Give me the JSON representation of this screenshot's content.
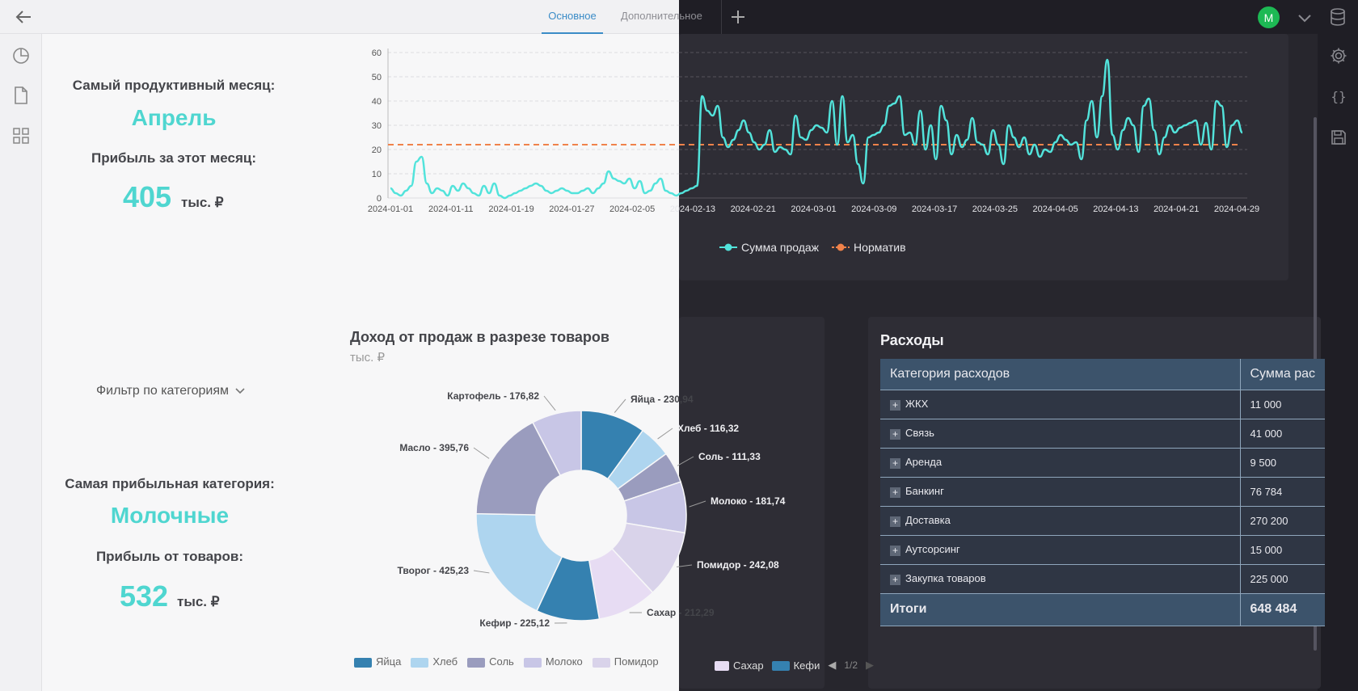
{
  "header": {
    "tabs": [
      {
        "label": "Основное",
        "active": true
      },
      {
        "label": "Дополнительное",
        "active": false
      }
    ],
    "avatar_letter": "М",
    "avatar_color": "#1db954"
  },
  "sidebar_icons": [
    "pie-chart-icon",
    "document-icon",
    "grid-icon"
  ],
  "right_rail_icons": [
    "gear-icon",
    "code-braces-icon",
    "save-icon"
  ],
  "kpi_month": {
    "title": "Самый продуктивный месяц:",
    "value": "Апрель",
    "profit_title": "Прибыль за этот месяц:",
    "profit_value": "405",
    "profit_unit": "тыс. ₽"
  },
  "filter": {
    "label": "Фильтр по категориям"
  },
  "kpi_category": {
    "title": "Самая прибыльная категория:",
    "value": "Молочные",
    "profit_title": "Прибыль от товаров:",
    "profit_value": "532",
    "profit_unit": "тыс. ₽"
  },
  "line_legend": {
    "series1": "Сумма продаж",
    "series2": "Норматив"
  },
  "pie_titles": {
    "title": "Доход от продаж в разрезе товаров",
    "subtitle": "тыс. ₽"
  },
  "pie_legend": {
    "items_light": [
      "Яйца",
      "Хлеб",
      "Соль",
      "Молоко",
      "Помидор"
    ],
    "items_dark": [
      "Сахар",
      "Кефи"
    ],
    "page": "1/2"
  },
  "expenses": {
    "title": "Расходы",
    "col1": "Категория расходов",
    "col2": "Сумма рас",
    "rows": [
      {
        "name": "ЖКХ",
        "value": "11 000"
      },
      {
        "name": "Связь",
        "value": "41 000"
      },
      {
        "name": "Аренда",
        "value": "9 500"
      },
      {
        "name": "Банкинг",
        "value": "76 784"
      },
      {
        "name": "Доставка",
        "value": "270 200"
      },
      {
        "name": "Аутсорсинг",
        "value": "15 000"
      },
      {
        "name": "Закупка товаров",
        "value": "225 000"
      }
    ],
    "total_label": "Итоги",
    "total_value": "648 484"
  },
  "colors": {
    "line": "#52e3db",
    "norm": "#f0824a",
    "accent": "#4fd6d0",
    "tab_active": "#3b8cc7"
  },
  "chart_data": [
    {
      "type": "line",
      "x_ticks": [
        "2024-01-01",
        "2024-01-11",
        "2024-01-19",
        "2024-01-27",
        "2024-02-05",
        "2024-02-13",
        "2024-02-21",
        "2024-03-01",
        "2024-03-09",
        "2024-03-17",
        "2024-03-25",
        "2024-04-05",
        "2024-04-13",
        "2024-04-21",
        "2024-04-29"
      ],
      "y_ticks": [
        0,
        10,
        20,
        30,
        40,
        50,
        60
      ],
      "ylim": [
        0,
        60
      ],
      "x_range": [
        "2024-01-01",
        "2024-04-30"
      ],
      "series": [
        {
          "name": "Сумма продаж",
          "values": [
            4,
            2,
            1,
            3,
            5,
            15,
            17,
            6,
            2,
            4,
            3,
            1,
            5,
            3,
            6,
            4,
            2,
            1,
            5,
            2,
            6,
            1,
            0,
            1,
            2,
            3,
            4,
            5,
            6,
            5,
            3,
            2,
            3,
            4,
            3,
            2,
            2,
            3,
            4,
            2,
            4,
            6,
            11,
            8,
            7,
            6,
            8,
            4,
            7,
            2,
            3,
            6,
            8,
            3,
            2,
            1,
            2,
            3,
            4,
            5,
            42,
            36,
            34,
            38,
            25,
            21,
            24,
            28,
            32,
            27,
            23,
            20,
            22,
            28,
            19,
            21,
            20,
            18,
            34,
            25,
            24,
            28,
            30,
            29,
            27,
            40,
            22,
            42,
            23,
            26,
            14,
            6,
            25,
            26,
            27,
            30,
            38,
            39,
            42,
            26,
            27,
            22,
            36,
            20,
            30,
            16,
            38,
            32,
            18,
            26,
            21,
            24,
            33,
            23,
            22,
            18,
            28,
            22,
            14,
            30,
            25,
            21,
            25,
            18,
            22,
            17,
            20,
            19,
            23,
            26,
            24,
            22,
            23,
            16,
            32,
            40,
            25,
            42,
            57,
            26,
            20,
            28,
            33,
            30,
            19,
            38,
            41,
            28,
            18,
            25,
            30,
            27,
            29,
            30,
            31,
            32,
            22,
            31,
            20,
            40,
            38,
            21,
            30,
            32,
            27
          ]
        },
        {
          "name": "Норматив",
          "values": [
            22
          ]
        }
      ]
    },
    {
      "type": "pie",
      "title": "Доход от продаж в разрезе товаров",
      "subtitle": "тыс. ₽",
      "categories": [
        "Яйца",
        "Хлеб",
        "Соль",
        "Молоко",
        "Помидор",
        "Сахар",
        "Кефир",
        "Творог",
        "Масло",
        "Картофель"
      ],
      "values": [
        230.94,
        116.32,
        111.33,
        181.74,
        242.08,
        212.29,
        225.12,
        425.23,
        395.76,
        176.82
      ],
      "labels": [
        "Яйца - 230,94",
        "Хлеб - 116,32",
        "Соль - 111,33",
        "Молоко - 181,74",
        "Помидор - 242,08",
        "Сахар - 212,29",
        "Кефир - 225,12",
        "Творог - 425,23",
        "Масло - 395,76",
        "Картофель - 176,82"
      ],
      "colors": [
        "#3581b0",
        "#aed5ef",
        "#9a9cbe",
        "#c8c6e6",
        "#d9d3ea",
        "#e7dcf3",
        "#3581b0",
        "#aed5ef",
        "#9a9cbe",
        "#c8c6e6"
      ]
    }
  ]
}
